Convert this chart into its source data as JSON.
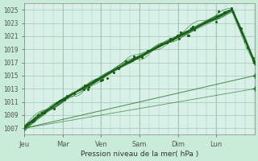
{
  "title": "",
  "xlabel": "Pression niveau de la mer( hPa )",
  "ylabel": "",
  "bg_color": "#c8ecd8",
  "plot_bg_color": "#d8f0e8",
  "grid_color": "#a0c8b0",
  "ylim": [
    1006,
    1026
  ],
  "yticks": [
    1007,
    1009,
    1011,
    1013,
    1015,
    1017,
    1019,
    1021,
    1023,
    1025
  ],
  "day_labels": [
    "Jeu",
    "Mar",
    "Ven",
    "Sam",
    "Dim",
    "Lun"
  ],
  "day_positions": [
    0,
    24,
    48,
    72,
    96,
    120
  ],
  "total_hours": 144,
  "dark_green": "#1a5c1a",
  "mid_green": "#2d7a2d",
  "light_green": "#4a9a4a"
}
